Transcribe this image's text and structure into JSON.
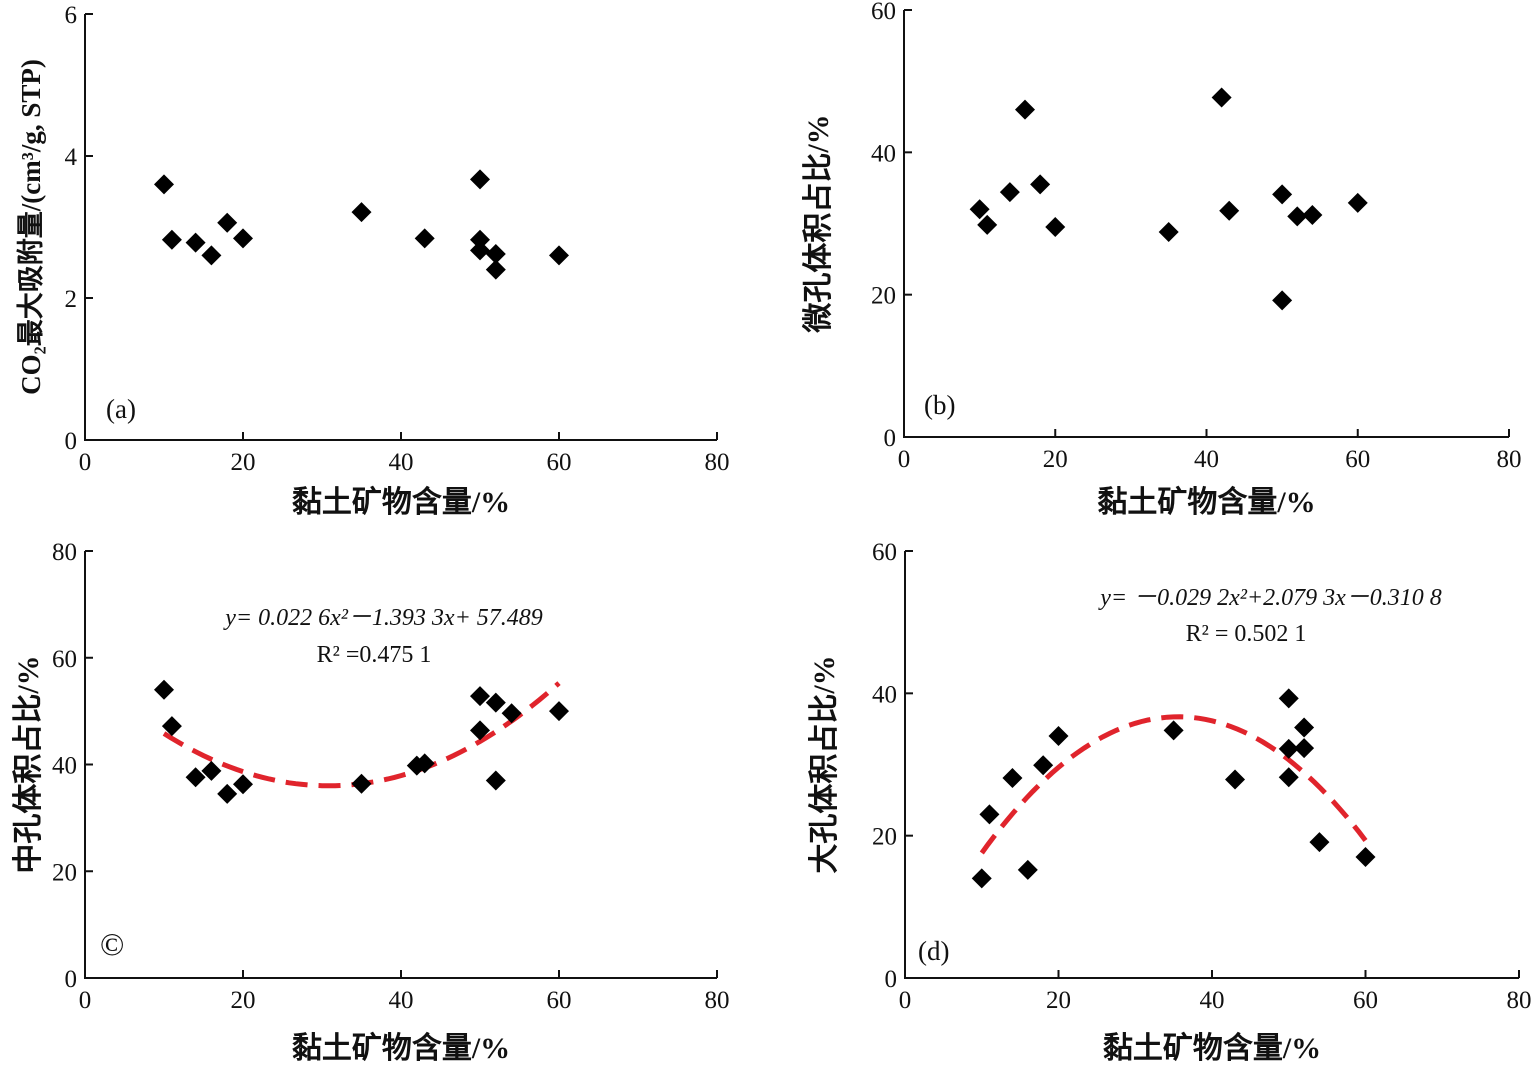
{
  "chart_data": [
    {
      "id": "a",
      "type": "scatter",
      "panel_label": "(a)",
      "xlabel": "黏土矿物含量/%",
      "ylabel": "CO₂最大吸附量/(cm³/g, STP)",
      "xlim": [
        0,
        80
      ],
      "ylim": [
        0,
        6
      ],
      "x_ticks": [
        "0",
        "20",
        "40",
        "60",
        "80"
      ],
      "y_ticks": [
        "0",
        "2",
        "4",
        "6"
      ],
      "y_tick_values": [
        0,
        2,
        4,
        6
      ],
      "points": [
        [
          10,
          3.6
        ],
        [
          11,
          2.82
        ],
        [
          14,
          2.78
        ],
        [
          16,
          2.6
        ],
        [
          18,
          3.06
        ],
        [
          20,
          2.84
        ],
        [
          35,
          3.21
        ],
        [
          43,
          2.84
        ],
        [
          50,
          3.67
        ],
        [
          50,
          2.82
        ],
        [
          50,
          2.67
        ],
        [
          52,
          2.62
        ],
        [
          52,
          2.4
        ],
        [
          60,
          2.6
        ]
      ],
      "fit": null,
      "equation": "",
      "r2": ""
    },
    {
      "id": "b",
      "type": "scatter",
      "panel_label": "(b)",
      "xlabel": "黏土矿物含量/%",
      "ylabel": "微孔体积占比/%",
      "xlim": [
        0,
        80
      ],
      "ylim": [
        0,
        60
      ],
      "x_ticks": [
        "0",
        "20",
        "40",
        "60",
        "80"
      ],
      "y_ticks": [
        "0",
        "20",
        "40",
        "60"
      ],
      "y_tick_values": [
        0,
        20,
        40,
        60
      ],
      "points": [
        [
          10,
          32
        ],
        [
          11,
          29.8
        ],
        [
          14,
          34.4
        ],
        [
          16,
          46
        ],
        [
          18,
          35.5
        ],
        [
          20,
          29.5
        ],
        [
          35,
          28.8
        ],
        [
          42,
          47.7
        ],
        [
          43,
          31.8
        ],
        [
          50,
          34.1
        ],
        [
          50,
          19.2
        ],
        [
          52,
          31
        ],
        [
          54,
          31.2
        ],
        [
          60,
          32.9
        ]
      ],
      "fit": null,
      "equation": "",
      "r2": ""
    },
    {
      "id": "c",
      "type": "scatter",
      "panel_label": "©",
      "xlabel": "黏土矿物含量/%",
      "ylabel": "中孔体积占比/%",
      "xlim": [
        0,
        80
      ],
      "ylim": [
        0,
        80
      ],
      "x_ticks": [
        "0",
        "20",
        "40",
        "60",
        "80"
      ],
      "y_ticks": [
        "0",
        "20",
        "40",
        "60",
        "80"
      ],
      "y_tick_values": [
        0,
        20,
        40,
        60,
        80
      ],
      "points": [
        [
          10,
          54
        ],
        [
          11,
          47.2
        ],
        [
          14,
          37.6
        ],
        [
          16,
          38.8
        ],
        [
          18,
          34.5
        ],
        [
          20,
          36.3
        ],
        [
          35,
          36.4
        ],
        [
          42,
          39.8
        ],
        [
          43,
          40.2
        ],
        [
          50,
          52.8
        ],
        [
          50,
          46.4
        ],
        [
          52,
          51.6
        ],
        [
          52,
          37
        ],
        [
          54,
          49.6
        ],
        [
          60,
          50
        ]
      ],
      "fit": {
        "a": 0.0226,
        "b": -1.3933,
        "c": 57.489,
        "x_from": 10,
        "x_to": 60
      },
      "equation": "y= 0.022 6x²－1.393 3x+ 57.489",
      "r2": "R² =0.475 1"
    },
    {
      "id": "d",
      "type": "scatter",
      "panel_label": "(d)",
      "xlabel": "黏土矿物含量/%",
      "ylabel": "大孔体积占比/%",
      "xlim": [
        0,
        80
      ],
      "ylim": [
        0,
        60
      ],
      "x_ticks": [
        "0",
        "20",
        "40",
        "60",
        "80"
      ],
      "y_ticks": [
        "0",
        "20",
        "40",
        "60"
      ],
      "y_tick_values": [
        0,
        20,
        40,
        60
      ],
      "points": [
        [
          10,
          14
        ],
        [
          11,
          23
        ],
        [
          14,
          28.1
        ],
        [
          16,
          15.2
        ],
        [
          18,
          29.9
        ],
        [
          20,
          34
        ],
        [
          35,
          34.8
        ],
        [
          43,
          27.9
        ],
        [
          50,
          39.3
        ],
        [
          50,
          32.2
        ],
        [
          50,
          28.2
        ],
        [
          52,
          35.2
        ],
        [
          52,
          32.3
        ],
        [
          54,
          19.1
        ],
        [
          60,
          17
        ]
      ],
      "fit": {
        "a": -0.0292,
        "b": 2.0793,
        "c": -0.3108,
        "x_from": 10,
        "x_to": 60
      },
      "equation": "y= －0.029 2x²+2.079 3x－0.310 8",
      "r2": "R² = 0.502 1"
    }
  ]
}
